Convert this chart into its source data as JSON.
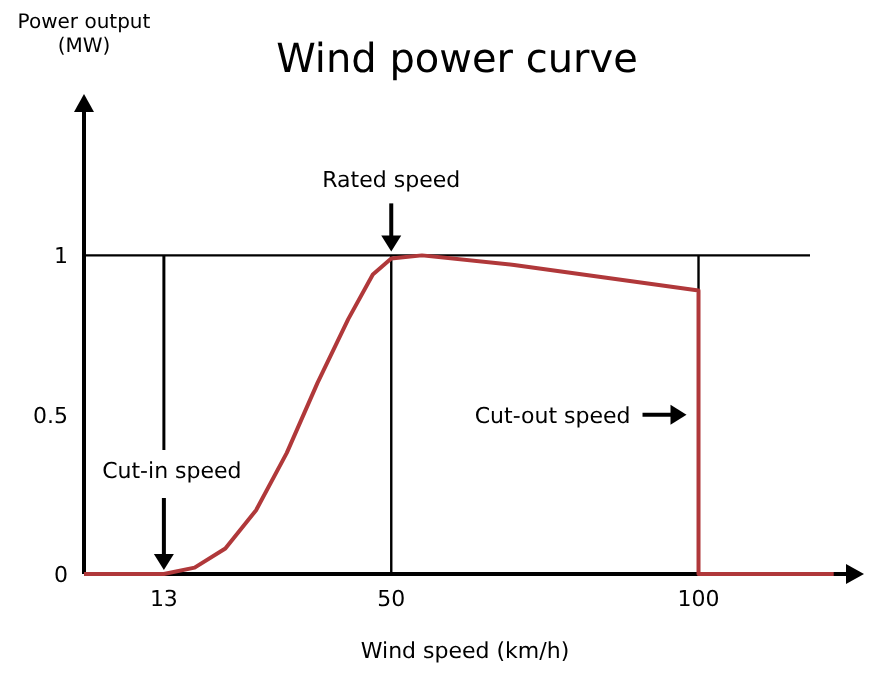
{
  "chart_data": {
    "type": "line",
    "title": "Wind power curve",
    "xlabel": "Wind speed (km/h)",
    "ylabel": "Power output (MW)",
    "x": [
      0,
      13,
      18,
      23,
      28,
      33,
      38,
      43,
      47,
      50,
      55,
      70,
      85,
      100,
      100,
      122
    ],
    "series": [
      {
        "color": "#b0383a",
        "values": [
          0,
          0,
          0.02,
          0.08,
          0.2,
          0.38,
          0.6,
          0.8,
          0.94,
          0.99,
          1,
          0.97,
          0.93,
          0.89,
          0,
          0
        ]
      }
    ],
    "xlim": [
      0,
      124
    ],
    "ylim": [
      0,
      1.45
    ],
    "xticks": [
      13,
      50,
      100
    ],
    "yticks": [
      0,
      0.5,
      1
    ],
    "ref_lines": [
      {
        "axis": "y",
        "value": 1
      },
      {
        "axis": "x",
        "value": 50
      },
      {
        "axis": "x",
        "value": 100
      }
    ],
    "annotations": [
      {
        "text": "Rated speed",
        "x": 50,
        "y": 1
      },
      {
        "text": "Cut-in speed",
        "x": 13,
        "y": 0
      },
      "Cut-out speed"
    ],
    "grid": false,
    "marker": "none",
    "line_style": "solid"
  }
}
